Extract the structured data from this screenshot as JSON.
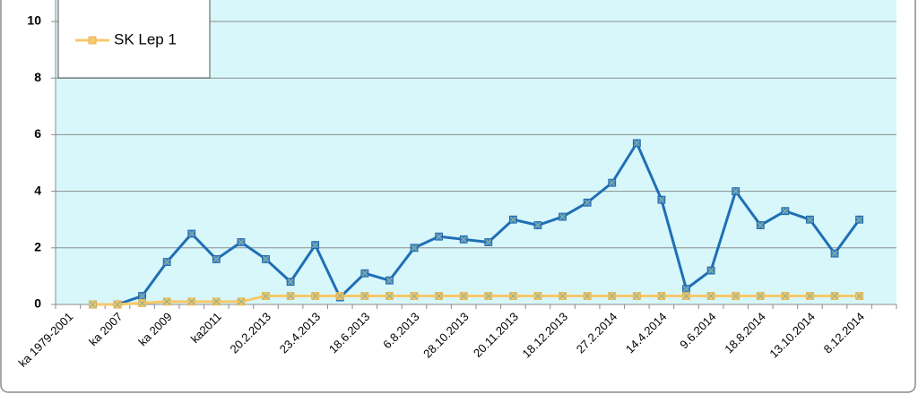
{
  "chart_data": {
    "type": "line",
    "categories": [
      "ka 1979-2001",
      null,
      "ka 2007",
      null,
      "ka 2009",
      null,
      "ka2011",
      null,
      "20.2.2013",
      null,
      "23.4.2013",
      null,
      "18.6.2013",
      null,
      "6.8.2013",
      null,
      "28.10.2013",
      null,
      "20.11.2013",
      null,
      "18.12.2013",
      null,
      "27.2.2014",
      null,
      "14.4.2014",
      null,
      "9.6.2014",
      null,
      "18.8.2014",
      null,
      "13.10.2014",
      null,
      "8.12.2014",
      null
    ],
    "series": [
      {
        "color": "#1f6fb5",
        "values": [
          null,
          0,
          0,
          0.3,
          1.5,
          2.5,
          1.6,
          2.2,
          1.6,
          0.8,
          2.1,
          0.25,
          1.1,
          0.85,
          2.0,
          2.4,
          2.3,
          2.2,
          3.0,
          2.8,
          3.1,
          3.6,
          4.3,
          5.7,
          3.7,
          0.55,
          1.2,
          4.0,
          2.8,
          3.3,
          3.0,
          1.8,
          3.0,
          null
        ]
      },
      {
        "name": "SK Lep 1",
        "color": "#f7c96b",
        "values": [
          null,
          0,
          0,
          0.05,
          0.1,
          0.1,
          0.1,
          0.1,
          0.3,
          0.3,
          0.3,
          0.3,
          0.3,
          0.3,
          0.3,
          0.3,
          0.3,
          0.3,
          0.3,
          0.3,
          0.3,
          0.3,
          0.3,
          0.3,
          0.3,
          0.3,
          0.3,
          0.3,
          0.3,
          0.3,
          0.3,
          0.3,
          0.3,
          null
        ]
      }
    ],
    "ylim": [
      0,
      12
    ],
    "yticks": [
      0,
      2,
      4,
      6,
      8,
      10
    ],
    "grid": true
  }
}
